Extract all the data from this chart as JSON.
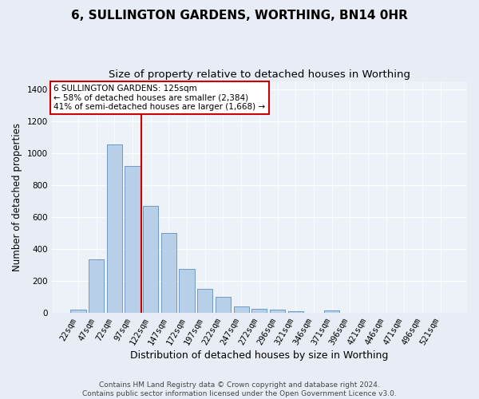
{
  "title": "6, SULLINGTON GARDENS, WORTHING, BN14 0HR",
  "subtitle": "Size of property relative to detached houses in Worthing",
  "xlabel": "Distribution of detached houses by size in Worthing",
  "ylabel": "Number of detached properties",
  "categories": [
    "22sqm",
    "47sqm",
    "72sqm",
    "97sqm",
    "122sqm",
    "147sqm",
    "172sqm",
    "197sqm",
    "222sqm",
    "247sqm",
    "272sqm",
    "296sqm",
    "321sqm",
    "346sqm",
    "371sqm",
    "396sqm",
    "421sqm",
    "446sqm",
    "471sqm",
    "496sqm",
    "521sqm"
  ],
  "values": [
    18,
    335,
    1055,
    920,
    668,
    500,
    275,
    150,
    100,
    40,
    22,
    18,
    10,
    0,
    12,
    0,
    0,
    0,
    0,
    0,
    0
  ],
  "bar_color": "#b8cfe8",
  "bar_edge_color": "#6090c0",
  "vline_x": 3.5,
  "vline_color": "#cc0000",
  "annotation_line1": "6 SULLINGTON GARDENS: 125sqm",
  "annotation_line2": "← 58% of detached houses are smaller (2,384)",
  "annotation_line3": "41% of semi-detached houses are larger (1,668) →",
  "annotation_box_facecolor": "#ffffff",
  "annotation_box_edgecolor": "#cc0000",
  "ylim": [
    0,
    1450
  ],
  "yticks": [
    0,
    200,
    400,
    600,
    800,
    1000,
    1200,
    1400
  ],
  "footer_line1": "Contains HM Land Registry data © Crown copyright and database right 2024.",
  "footer_line2": "Contains public sector information licensed under the Open Government Licence v3.0.",
  "fig_facecolor": "#e8edf5",
  "axes_facecolor": "#edf1f8",
  "title_fontsize": 11,
  "subtitle_fontsize": 9.5,
  "xlabel_fontsize": 9,
  "ylabel_fontsize": 8.5,
  "tick_fontsize": 7.5,
  "annotation_fontsize": 7.5,
  "footer_fontsize": 6.5
}
